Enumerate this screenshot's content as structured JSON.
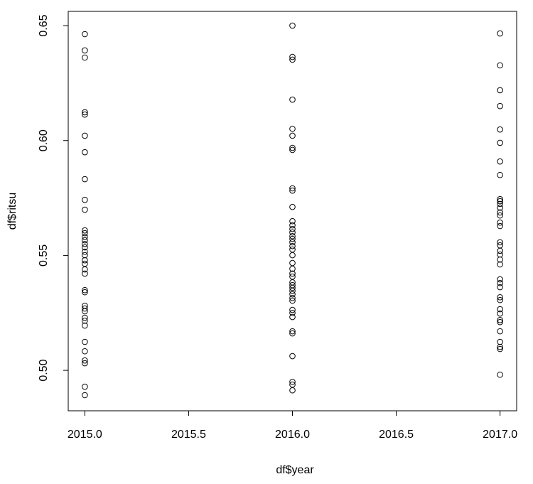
{
  "chart_data": {
    "type": "scatter",
    "x_label": "df$year",
    "y_label": "df$ritsu",
    "x": [
      2015,
      2015,
      2015,
      2015,
      2015,
      2015,
      2015,
      2015,
      2015,
      2015,
      2015,
      2015,
      2015,
      2015,
      2015,
      2015,
      2015,
      2015,
      2015,
      2015,
      2015,
      2015,
      2015,
      2015,
      2015,
      2015,
      2015,
      2015,
      2015,
      2015,
      2015,
      2015,
      2015,
      2015,
      2015,
      2015,
      2016,
      2016,
      2016,
      2016,
      2016,
      2016,
      2016,
      2016,
      2016,
      2016,
      2016,
      2016,
      2016,
      2016,
      2016,
      2016,
      2016,
      2016,
      2016,
      2016,
      2016,
      2016,
      2016,
      2016,
      2016,
      2016,
      2016,
      2016,
      2016,
      2016,
      2016,
      2016,
      2016,
      2016,
      2016,
      2016,
      2016,
      2016,
      2016,
      2016,
      2016,
      2017,
      2017,
      2017,
      2017,
      2017,
      2017,
      2017,
      2017,
      2017,
      2017,
      2017,
      2017,
      2017,
      2017,
      2017,
      2017,
      2017,
      2017,
      2017,
      2017,
      2017,
      2017,
      2017,
      2017,
      2017,
      2017,
      2017,
      2017,
      2017,
      2017,
      2017,
      2017,
      2017,
      2017,
      2017,
      2017
    ],
    "values": [
      0.6463,
      0.6392,
      0.6361,
      0.6123,
      0.6113,
      0.6021,
      0.5949,
      0.5832,
      0.5742,
      0.5699,
      0.5609,
      0.5597,
      0.5581,
      0.5566,
      0.555,
      0.5535,
      0.5516,
      0.5501,
      0.5479,
      0.5464,
      0.5439,
      0.5421,
      0.5349,
      0.534,
      0.5281,
      0.5269,
      0.5257,
      0.5229,
      0.5216,
      0.5195,
      0.5124,
      0.5083,
      0.5043,
      0.5031,
      0.4929,
      0.4892,
      0.65,
      0.6364,
      0.6352,
      0.6178,
      0.6051,
      0.6021,
      0.5968,
      0.5959,
      0.5792,
      0.5782,
      0.5711,
      0.5649,
      0.5631,
      0.5615,
      0.56,
      0.5584,
      0.5572,
      0.5557,
      0.5541,
      0.5526,
      0.5501,
      0.5467,
      0.5442,
      0.5421,
      0.5408,
      0.5383,
      0.5371,
      0.5359,
      0.5346,
      0.5331,
      0.5315,
      0.5303,
      0.5263,
      0.525,
      0.5232,
      0.517,
      0.5161,
      0.5062,
      0.495,
      0.4938,
      0.4913,
      0.6466,
      0.6327,
      0.6219,
      0.615,
      0.6048,
      0.599,
      0.5909,
      0.585,
      0.5745,
      0.5736,
      0.5724,
      0.5708,
      0.5687,
      0.5674,
      0.5643,
      0.5628,
      0.5557,
      0.5544,
      0.552,
      0.5504,
      0.5482,
      0.5461,
      0.5396,
      0.538,
      0.5362,
      0.5318,
      0.5306,
      0.5266,
      0.5247,
      0.5219,
      0.521,
      0.517,
      0.5124,
      0.5102,
      0.5093,
      0.4981
    ],
    "color": "#000000",
    "xlim": [
      2014.92,
      2017.08
    ],
    "ylim": [
      0.4824,
      0.6562
    ],
    "xticks": [
      {
        "value": 2015,
        "label": "2015.0"
      },
      2015.5,
      {
        "value": 2016,
        "label": "2016.0"
      },
      2016.5,
      {
        "value": 2017,
        "label": "2017.0"
      }
    ],
    "yticks": [
      {
        "value": 0.5,
        "label": "0.50"
      },
      0.55,
      {
        "value": 0.6,
        "label": "0.60"
      },
      0.65
    ],
    "grid": false
  }
}
